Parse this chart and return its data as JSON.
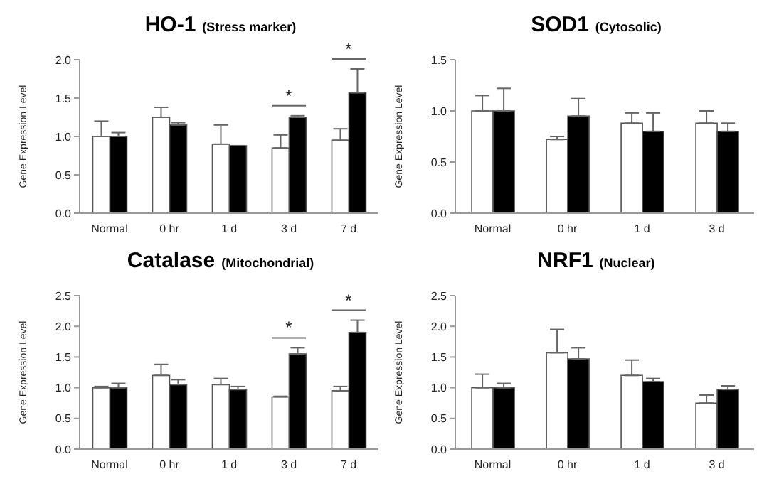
{
  "chart_data": [
    {
      "type": "bar",
      "title": "HO-1",
      "subtitle": "(Stress marker)",
      "ylabel": "Gene Expression Level",
      "categories": [
        "Normal",
        "0 hr",
        "1 d",
        "3 d",
        "7 d"
      ],
      "ylim": [
        0,
        2
      ],
      "yticks": [
        {
          "value": 0,
          "label": "0.0"
        },
        {
          "value": 0.5,
          "label": "0.5"
        },
        {
          "value": 1,
          "label": "1.0"
        },
        {
          "value": 1.5,
          "label": "1.5"
        },
        {
          "value": 2,
          "label": "2.0"
        }
      ],
      "grid": false,
      "legend": false,
      "series": [
        {
          "color": "#ffffff",
          "values": [
            1.0,
            1.25,
            0.9,
            0.85,
            0.95
          ],
          "errors": [
            [
              1.0,
              1.2
            ],
            [
              1.25,
              1.38
            ],
            [
              0.9,
              1.15
            ],
            [
              0.85,
              1.02
            ],
            [
              0.95,
              1.1
            ]
          ]
        },
        {
          "color": "#000000",
          "values": [
            1.0,
            1.15,
            0.88,
            1.25,
            1.57
          ],
          "errors": [
            [
              1.0,
              1.05
            ],
            [
              1.15,
              1.18
            ],
            null,
            [
              1.25,
              1.27
            ],
            [
              1.57,
              1.88
            ]
          ]
        }
      ],
      "annotations": [
        "*",
        "*"
      ]
    },
    {
      "type": "bar",
      "title": "SOD1",
      "subtitle": "(Cytosolic)",
      "ylabel": "Gene Expression Level",
      "categories": [
        "Normal",
        "0 hr",
        "1 d",
        "3 d"
      ],
      "ylim": [
        0,
        1.5
      ],
      "yticks": [
        {
          "value": 0,
          "label": "0.0"
        },
        {
          "value": 0.5,
          "label": "0.5"
        },
        {
          "value": 1,
          "label": "1.0"
        },
        {
          "value": 1.5,
          "label": "1.5"
        }
      ],
      "grid": false,
      "legend": false,
      "series": [
        {
          "color": "#ffffff",
          "values": [
            1.0,
            0.72,
            0.88,
            0.88
          ],
          "errors": [
            [
              1.0,
              1.15
            ],
            [
              0.72,
              0.75
            ],
            [
              0.88,
              0.98
            ],
            [
              0.88,
              1.0
            ]
          ]
        },
        {
          "color": "#000000",
          "values": [
            1.0,
            0.95,
            0.8,
            0.8
          ],
          "errors": [
            [
              1.0,
              1.22
            ],
            [
              0.95,
              1.12
            ],
            [
              0.8,
              0.98
            ],
            [
              0.8,
              0.88
            ]
          ]
        }
      ]
    },
    {
      "type": "bar",
      "title": "Catalase",
      "subtitle": "(Mitochondrial)",
      "ylabel": "Gene Expression Level",
      "categories": [
        "Normal",
        "0 hr",
        "1 d",
        "3 d",
        "7 d"
      ],
      "ylim": [
        0,
        2.5
      ],
      "yticks": [
        {
          "value": 0,
          "label": "0.0"
        },
        {
          "value": 0.5,
          "label": "0.5"
        },
        {
          "value": 1,
          "label": "1.0"
        },
        {
          "value": 1.5,
          "label": "1.5"
        },
        {
          "value": 2,
          "label": "2.0"
        },
        {
          "value": 2.5,
          "label": "2.5"
        }
      ],
      "grid": false,
      "legend": false,
      "series": [
        {
          "color": "#ffffff",
          "values": [
            1.0,
            1.2,
            1.05,
            0.85,
            0.95
          ],
          "errors": [
            [
              1.0,
              1.02
            ],
            [
              1.2,
              1.38
            ],
            [
              1.05,
              1.15
            ],
            [
              0.85,
              0.86
            ],
            [
              0.95,
              1.02
            ]
          ]
        },
        {
          "color": "#000000",
          "values": [
            1.0,
            1.05,
            0.97,
            1.55,
            1.9
          ],
          "errors": [
            [
              1.0,
              1.07
            ],
            [
              1.05,
              1.13
            ],
            [
              0.97,
              1.02
            ],
            [
              1.55,
              1.65
            ],
            [
              1.9,
              2.1
            ]
          ]
        }
      ],
      "annotations": [
        "*",
        "*"
      ]
    },
    {
      "type": "bar",
      "title": "NRF1",
      "subtitle": "(Nuclear)",
      "ylabel": "Gene Expression Level",
      "categories": [
        "Normal",
        "0 hr",
        "1 d",
        "3 d"
      ],
      "ylim": [
        0,
        2.5
      ],
      "yticks": [
        {
          "value": 0,
          "label": "0.0"
        },
        {
          "value": 0.5,
          "label": "0.5"
        },
        {
          "value": 1,
          "label": "1.0"
        },
        {
          "value": 1.5,
          "label": "1.5"
        },
        {
          "value": 2,
          "label": "2.0"
        },
        {
          "value": 2.5,
          "label": "2.5"
        }
      ],
      "grid": false,
      "legend": false,
      "series": [
        {
          "color": "#ffffff",
          "values": [
            1.0,
            1.57,
            1.2,
            0.75
          ],
          "errors": [
            [
              1.0,
              1.22
            ],
            [
              1.57,
              1.95
            ],
            [
              1.2,
              1.45
            ],
            [
              0.75,
              0.88
            ]
          ]
        },
        {
          "color": "#000000",
          "values": [
            1.0,
            1.47,
            1.1,
            0.97
          ],
          "errors": [
            [
              1.0,
              1.07
            ],
            [
              1.47,
              1.65
            ],
            [
              1.1,
              1.15
            ],
            [
              0.97,
              1.03
            ]
          ]
        }
      ]
    }
  ]
}
